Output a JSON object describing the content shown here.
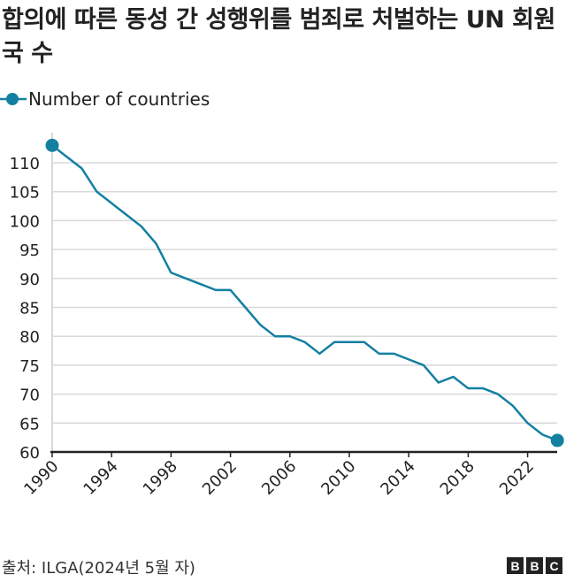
{
  "title": "합의에 따른 동성 간 성행위를 범죄로 처벌하는 UN 회원국 수",
  "source": "출처: ILGA(2024년 5월 자)",
  "logo": "BBC",
  "chart_data": {
    "type": "line",
    "series": [
      {
        "name": "Number of countries",
        "color": "#1380a1",
        "x": [
          1990,
          1991,
          1992,
          1993,
          1994,
          1995,
          1996,
          1997,
          1998,
          1999,
          2000,
          2001,
          2002,
          2003,
          2004,
          2005,
          2006,
          2007,
          2008,
          2009,
          2010,
          2011,
          2012,
          2013,
          2014,
          2015,
          2016,
          2017,
          2018,
          2019,
          2020,
          2021,
          2022,
          2023,
          2024
        ],
        "values": [
          113,
          111,
          109,
          105,
          103,
          101,
          99,
          96,
          91,
          90,
          89,
          88,
          88,
          85,
          82,
          80,
          80,
          79,
          77,
          79,
          79,
          79,
          77,
          77,
          76,
          75,
          72,
          73,
          71,
          71,
          70,
          68,
          65,
          63,
          62
        ]
      }
    ],
    "xticks": [
      "1990",
      "1994",
      "1998",
      "2002",
      "2006",
      "2010",
      "2014",
      "2018",
      "2022"
    ],
    "yticks": [
      "60",
      "65",
      "70",
      "75",
      "80",
      "85",
      "90",
      "95",
      "100",
      "105",
      "110"
    ],
    "ylim": [
      60,
      113
    ],
    "xlim": [
      1990,
      2024
    ],
    "grid": "horizontal",
    "legend": "top-left"
  }
}
